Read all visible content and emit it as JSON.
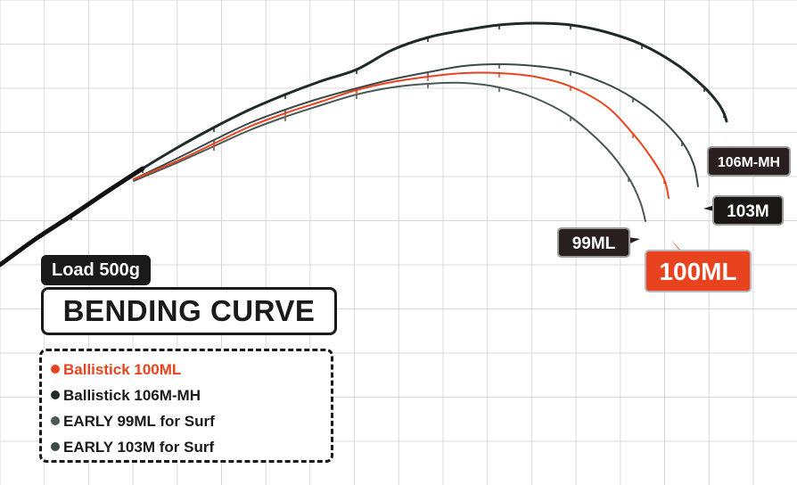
{
  "chart_data": {
    "type": "line",
    "title": "BENDING CURVE",
    "subtitle": "Load 500g",
    "xlabel": "",
    "ylabel": "",
    "grid": true,
    "legend_placement": "bottom-left",
    "series": [
      {
        "name": "Ballistick 106M-MH",
        "label": "106M-MH",
        "color": "#1f2a2a",
        "x": [
          0,
          40,
          80,
          120,
          160,
          200,
          240,
          280,
          320,
          360,
          400,
          440,
          480,
          520,
          560,
          600,
          640,
          680,
          720,
          760,
          790,
          805,
          812,
          815
        ],
        "y": [
          247,
          276,
          302,
          329,
          355,
          379,
          401,
          421,
          438,
          453,
          466,
          488,
          502,
          510,
          516,
          518,
          516,
          508,
          494,
          471,
          446,
          429,
          417,
          408
        ]
      },
      {
        "name": "EARLY 103M for Surf",
        "label": "103M",
        "color": "#3b4a48",
        "x": [
          150,
          200,
          240,
          280,
          320,
          360,
          400,
          440,
          480,
          520,
          560,
          600,
          640,
          680,
          710,
          740,
          765,
          778,
          783
        ],
        "y": [
          343,
          367,
          387,
          406,
          421,
          434,
          445,
          455,
          463,
          470,
          472,
          470,
          464,
          450,
          434,
          412,
          385,
          360,
          335
        ]
      },
      {
        "name": "Ballistick 100ML",
        "label": "100ML",
        "color": "#e8431e",
        "x": [
          150,
          200,
          240,
          280,
          320,
          360,
          400,
          440,
          480,
          520,
          560,
          600,
          640,
          680,
          710,
          730,
          745,
          750
        ],
        "y": [
          343,
          364,
          383,
          402,
          417,
          430,
          443,
          452,
          458,
          462,
          462,
          458,
          447,
          425,
          394,
          368,
          343,
          322
        ]
      },
      {
        "name": "EARLY 99ML for Surf",
        "label": "99ML",
        "color": "#4a5856",
        "x": [
          150,
          200,
          240,
          280,
          320,
          360,
          400,
          440,
          480,
          520,
          560,
          600,
          640,
          680,
          705,
          718,
          724
        ],
        "y": [
          341,
          362,
          380,
          398,
          413,
          426,
          438,
          446,
          450,
          451,
          446,
          434,
          413,
          378,
          345,
          318,
          296
        ]
      }
    ]
  },
  "colors": {
    "accent": "#e8431e",
    "dark": "#1f1f1f",
    "grid": "#d8d8d8"
  }
}
